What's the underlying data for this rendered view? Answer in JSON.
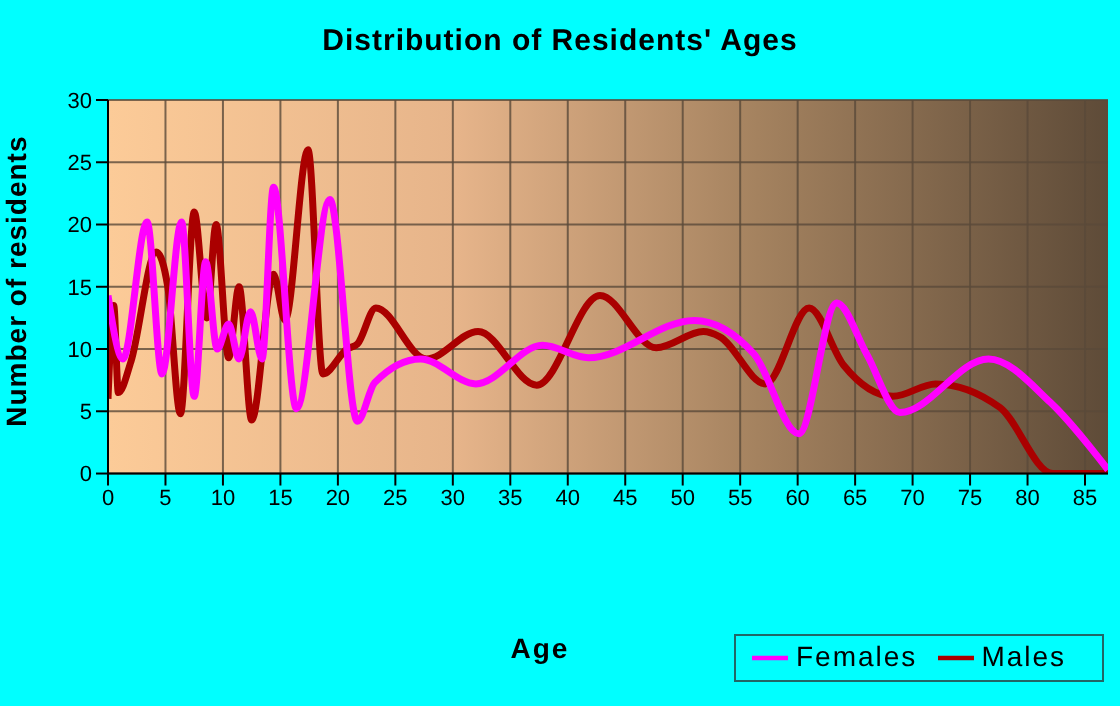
{
  "chart_data": {
    "type": "line",
    "title": "Distribution of Residents' Ages",
    "xlabel": "Age",
    "ylabel": "Number of residents",
    "xlim": [
      0,
      87
    ],
    "xticks": [
      0,
      5,
      10,
      15,
      20,
      25,
      30,
      35,
      40,
      45,
      50,
      55,
      60,
      65,
      70,
      75,
      80,
      85
    ],
    "ylim": [
      0,
      30
    ],
    "yticks": [
      0,
      5,
      10,
      15,
      20,
      25,
      30
    ],
    "grid": true,
    "legend": "bottom right",
    "marker": "none",
    "line_style": "solid",
    "series": [
      {
        "name": "Males",
        "color": "#aa0000",
        "x": [
          0,
          0.5,
          0.9,
          2,
          4.2,
          5.2,
          6.3,
          7.5,
          8.6,
          9.4,
          10.5,
          11.4,
          12.5,
          14.4,
          15.4,
          17.4,
          18.7,
          20.8,
          21.7,
          23.3,
          27.7,
          32.2,
          37.3,
          42.8,
          47.7,
          51.8,
          53.2,
          57.2,
          61,
          64,
          68.3,
          72,
          77.6,
          82.2,
          87
        ],
        "values": [
          6,
          13.5,
          6.5,
          9,
          17.8,
          15,
          4.8,
          21,
          12.5,
          20,
          9.3,
          15,
          4.3,
          16,
          12.3,
          26,
          8,
          10,
          10.4,
          13.3,
          9.2,
          11.4,
          7.1,
          14.3,
          10.1,
          11.4,
          11,
          7.2,
          13.3,
          8.7,
          6.2,
          7.2,
          5.3,
          0,
          0
        ]
      },
      {
        "name": "Females",
        "color": "#ff00ff",
        "x": [
          0,
          1.3,
          3.4,
          4.7,
          6.4,
          7.5,
          8.5,
          9.5,
          10.5,
          11.4,
          12.4,
          13.4,
          14.4,
          16.4,
          19.3,
          21.7,
          23.2,
          27.2,
          32,
          37.8,
          41.8,
          51,
          56.2,
          60.1,
          63.4,
          66,
          68.9,
          76.6,
          82,
          87
        ],
        "values": [
          14.3,
          9.2,
          20.2,
          8,
          20.2,
          6.2,
          17,
          10,
          12,
          9.2,
          13,
          9.2,
          23,
          5.2,
          22,
          4.2,
          7.3,
          9.2,
          7.2,
          10.3,
          9.3,
          12.3,
          9.6,
          3.2,
          13.7,
          9.6,
          4.9,
          9.2,
          5.7,
          0.3
        ]
      }
    ]
  }
}
